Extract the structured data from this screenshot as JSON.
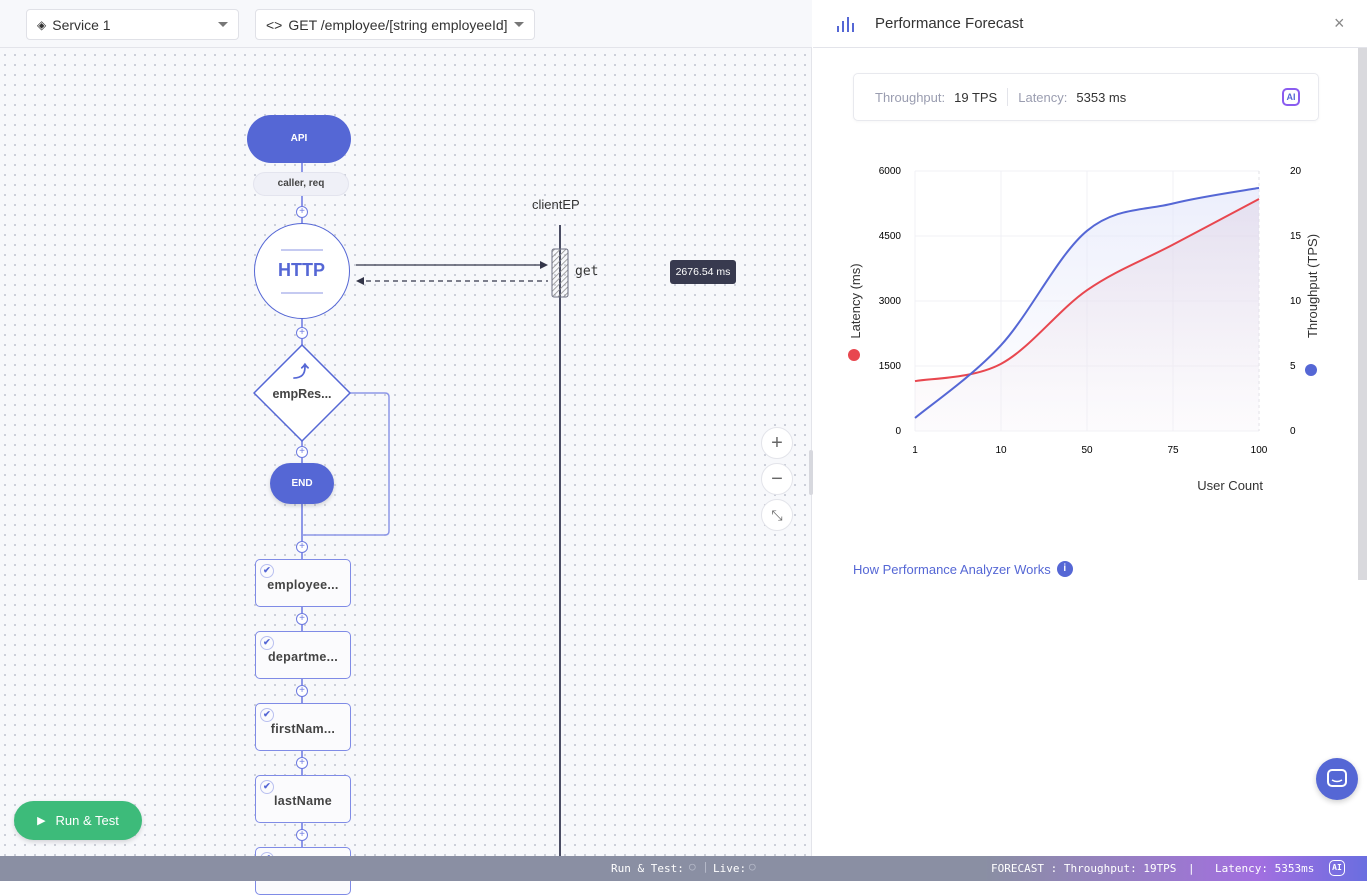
{
  "toolbar": {
    "service_label": "Service 1",
    "resource_label": "GET /employee/[string employeeId]"
  },
  "flow": {
    "api_label": "API",
    "params_label": "caller, req",
    "http_label": "HTTP",
    "if_label": "empRes...",
    "end_label": "END",
    "endpoint_label": "clientEP",
    "action_label": "get",
    "latency_tooltip": "2676.54 ms",
    "statements": [
      "employee...",
      "departme...",
      "firstNam...",
      "lastName",
      ""
    ]
  },
  "run_button": {
    "label": "Run & Test"
  },
  "panel": {
    "title": "Performance Forecast",
    "throughput_label": "Throughput:",
    "throughput_value": "19 TPS",
    "latency_label": "Latency:",
    "latency_value": "5353 ms",
    "ai_badge": "AI",
    "help_link": "How Performance Analyzer Works"
  },
  "chart_data": {
    "type": "line",
    "x": [
      1,
      10,
      50,
      75,
      100
    ],
    "xlabel": "User Count",
    "categories": [
      "1",
      "10",
      "50",
      "75",
      "100"
    ],
    "y_left": {
      "label": "Latency (ms)",
      "ticks": [
        0,
        1500,
        3000,
        4500,
        6000
      ],
      "range": [
        0,
        6000
      ]
    },
    "y_right": {
      "label": "Throughput (TPS)",
      "ticks": [
        0,
        5,
        10,
        15,
        20
      ],
      "range": [
        0,
        20
      ]
    },
    "series": [
      {
        "name": "Latency (ms)",
        "axis": "left",
        "color": "#e8474f",
        "values": [
          1150,
          1550,
          3250,
          4300,
          5353
        ]
      },
      {
        "name": "Throughput (TPS)",
        "axis": "right",
        "color": "#5567d5",
        "values": [
          1,
          6.6,
          15.4,
          17.5,
          18.7
        ]
      }
    ],
    "grid": true
  },
  "status": {
    "run_test": "Run & Test:",
    "live": "Live:",
    "forecast": "FORECAST : Throughput: 19TPS",
    "latency": "Latency: 5353ms",
    "ai": "AI"
  },
  "colors": {
    "accent": "#5567d5",
    "latency": "#e8474f",
    "run": "#3dbb7a"
  }
}
